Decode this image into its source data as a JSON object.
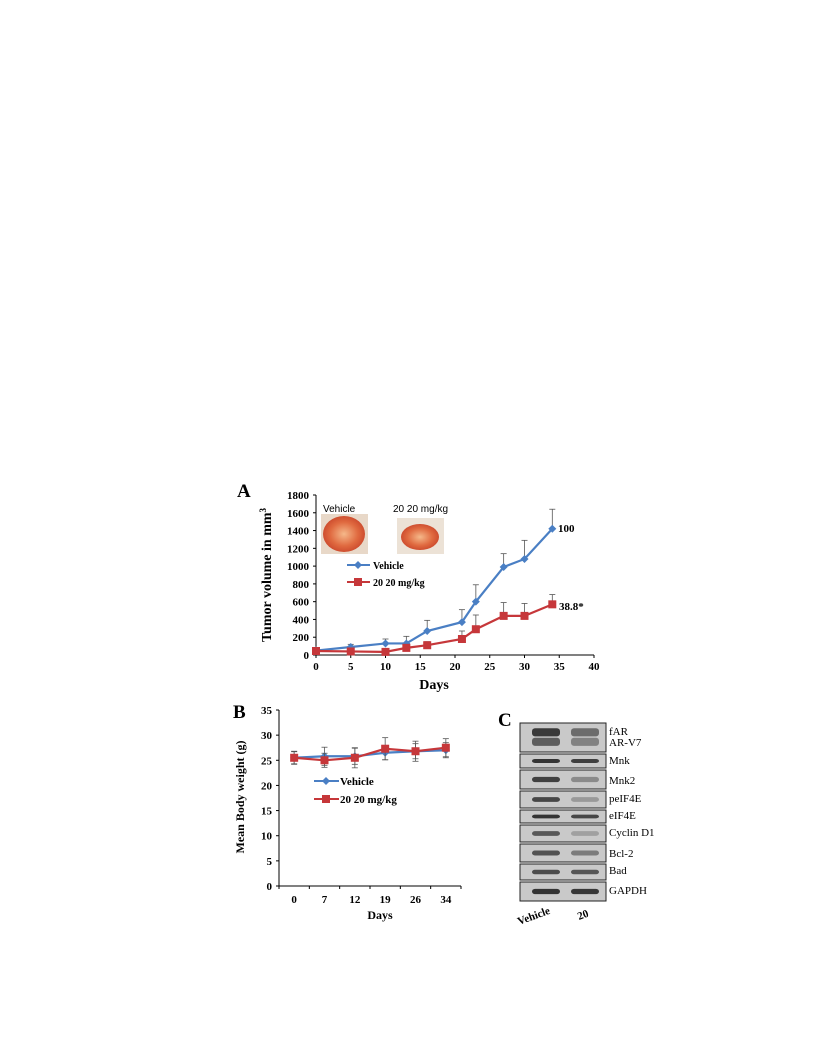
{
  "panels": {
    "a": "A",
    "b": "B",
    "c": "C"
  },
  "colors": {
    "vehicle": "#4a7fc4",
    "treated": "#c6373a",
    "axis": "#000000",
    "tumor": "#d9593d"
  },
  "chart_data": [
    {
      "id": "A",
      "type": "line",
      "xlabel": "Days",
      "ylabel": "Tumor volume in mm",
      "ylabel_sup": "3",
      "xlim": [
        0,
        40
      ],
      "ylim": [
        0,
        1800
      ],
      "xticks": [
        0,
        5,
        10,
        15,
        20,
        25,
        30,
        35,
        40
      ],
      "yticks": [
        0,
        200,
        400,
        600,
        800,
        1000,
        1200,
        1400,
        1600,
        1800
      ],
      "series": [
        {
          "name": "Vehicle",
          "color": "#4a7fc4",
          "marker": "diamond",
          "x": [
            0,
            5,
            10,
            13,
            16,
            21,
            23,
            27,
            30,
            34
          ],
          "y": [
            50,
            90,
            130,
            130,
            270,
            370,
            600,
            990,
            1080,
            1420
          ],
          "err": [
            30,
            30,
            50,
            80,
            120,
            140,
            190,
            150,
            210,
            220
          ],
          "end_label": "100"
        },
        {
          "name": "20 20 mg/kg",
          "color": "#c6373a",
          "marker": "square",
          "x": [
            0,
            5,
            10,
            13,
            16,
            21,
            23,
            27,
            30,
            34
          ],
          "y": [
            45,
            40,
            35,
            80,
            110,
            180,
            290,
            440,
            440,
            570
          ],
          "err": [
            20,
            20,
            20,
            40,
            40,
            90,
            160,
            150,
            140,
            110
          ],
          "end_label": "38.8*"
        }
      ],
      "inset": {
        "vehicle_label": "Vehicle",
        "treated_label": "20 20 mg/kg"
      }
    },
    {
      "id": "B",
      "type": "line",
      "xlabel": "Days",
      "ylabel": "Mean Body weight (g)",
      "ylim": [
        0,
        35
      ],
      "yticks": [
        0,
        5,
        10,
        15,
        20,
        25,
        30,
        35
      ],
      "categories": [
        "0",
        "7",
        "12",
        "19",
        "26",
        "34"
      ],
      "series": [
        {
          "name": "Vehicle",
          "color": "#4a7fc4",
          "marker": "diamond",
          "values": [
            25.5,
            25.8,
            25.8,
            26.5,
            26.8,
            27.0
          ],
          "err": [
            1.2,
            1.8,
            1.6,
            1.4,
            1.5,
            1.5
          ]
        },
        {
          "name": "20 20 mg/kg",
          "color": "#c6373a",
          "marker": "square",
          "values": [
            25.5,
            25.0,
            25.5,
            27.3,
            26.8,
            27.5
          ],
          "err": [
            1.3,
            1.4,
            2.0,
            2.2,
            2.0,
            1.8
          ]
        }
      ]
    }
  ],
  "blot": {
    "lanes": [
      "Vehicle",
      "20"
    ],
    "labels": [
      "fAR",
      "AR-V7",
      "Mnk",
      "Mnk2",
      "peIF4E",
      "eIF4E",
      "Cyclin D1",
      "Bcl-2",
      "Bad",
      "GAPDH"
    ]
  }
}
